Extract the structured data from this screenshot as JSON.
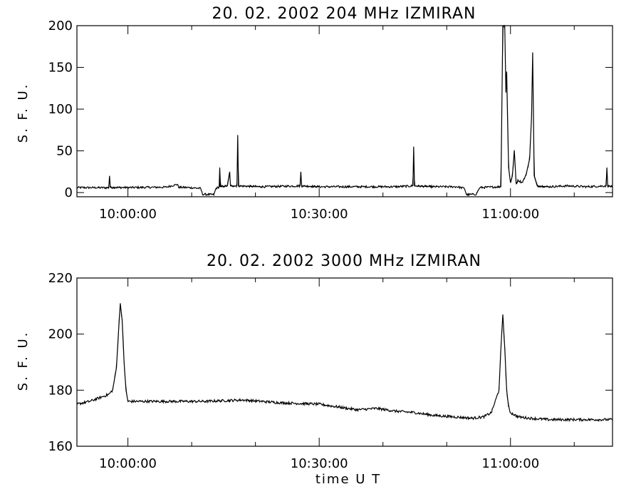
{
  "chart_data": [
    {
      "type": "line",
      "title": "20.  02.  2002    204 MHz    IZMIRAN",
      "ylabel": "S. F. U.",
      "xlabel": "",
      "xlim": [
        9.8667,
        11.2667
      ],
      "ylim": [
        -5,
        200
      ],
      "yticks": [
        0,
        50,
        100,
        150,
        200
      ],
      "xticks": [
        {
          "value": 10.0,
          "label": "10:00:00"
        },
        {
          "value": 10.5,
          "label": "10:30:00"
        },
        {
          "value": 11.0,
          "label": "11:00:00"
        }
      ],
      "series": [
        {
          "baseline": 6,
          "points": [
            [
              9.8667,
              6.0
            ],
            [
              9.95,
              5.8
            ],
            [
              9.952,
              20.0
            ],
            [
              9.954,
              6.2
            ],
            [
              10.0,
              6.0
            ],
            [
              10.1,
              6.5
            ],
            [
              10.13,
              10.0
            ],
            [
              10.132,
              6.3
            ],
            [
              10.16,
              6.0
            ],
            [
              10.19,
              5.0
            ],
            [
              10.195,
              -2.0
            ],
            [
              10.225,
              -2.5
            ],
            [
              10.23,
              5.0
            ],
            [
              10.24,
              7.0
            ],
            [
              10.24,
              30.0
            ],
            [
              10.242,
              7.0
            ],
            [
              10.26,
              8.0
            ],
            [
              10.266,
              25.0
            ],
            [
              10.268,
              8.0
            ],
            [
              10.285,
              8.0
            ],
            [
              10.287,
              69.0
            ],
            [
              10.289,
              8.0
            ],
            [
              10.35,
              7.0
            ],
            [
              10.45,
              8.0
            ],
            [
              10.452,
              25.0
            ],
            [
              10.454,
              8.0
            ],
            [
              10.5,
              7.0
            ],
            [
              10.6,
              7.0
            ],
            [
              10.7,
              7.0
            ],
            [
              10.745,
              8.0
            ],
            [
              10.747,
              55.0
            ],
            [
              10.749,
              8.0
            ],
            [
              10.8,
              7.0
            ],
            [
              10.86,
              7.0
            ],
            [
              10.88,
              5.0
            ],
            [
              10.885,
              -2.5
            ],
            [
              10.91,
              -2.0
            ],
            [
              10.92,
              6.0
            ],
            [
              10.975,
              7.0
            ],
            [
              10.98,
              200.0
            ],
            [
              10.985,
              200.0
            ],
            [
              10.988,
              120.0
            ],
            [
              10.99,
              145.0
            ],
            [
              10.995,
              30.0
            ],
            [
              11.0,
              12.0
            ],
            [
              11.005,
              20.0
            ],
            [
              11.01,
              50.0
            ],
            [
              11.015,
              10.0
            ],
            [
              11.02,
              15.0
            ],
            [
              11.03,
              12.0
            ],
            [
              11.04,
              20.0
            ],
            [
              11.05,
              40.0
            ],
            [
              11.055,
              90.0
            ],
            [
              11.058,
              168.0
            ],
            [
              11.062,
              20.0
            ],
            [
              11.07,
              8.0
            ],
            [
              11.1,
              7.0
            ],
            [
              11.15,
              8.0
            ],
            [
              11.2,
              7.0
            ],
            [
              11.25,
              8.0
            ],
            [
              11.252,
              30.0
            ],
            [
              11.254,
              8.0
            ],
            [
              11.2667,
              7.0
            ]
          ]
        }
      ]
    },
    {
      "type": "line",
      "title": "20.  02.  2002    3000 MHz    IZMIRAN",
      "ylabel": "S. F. U.",
      "xlabel": "time   U T",
      "xlim": [
        9.8667,
        11.2667
      ],
      "ylim": [
        160,
        220
      ],
      "yticks": [
        160,
        180,
        200,
        220
      ],
      "xticks": [
        {
          "value": 10.0,
          "label": "10:00:00"
        },
        {
          "value": 10.5,
          "label": "10:30:00"
        },
        {
          "value": 11.0,
          "label": "11:00:00"
        }
      ],
      "series": [
        {
          "points": [
            [
              9.8667,
              175.0
            ],
            [
              9.9,
              176.0
            ],
            [
              9.93,
              177.5
            ],
            [
              9.95,
              178.5
            ],
            [
              9.96,
              180.0
            ],
            [
              9.97,
              188.0
            ],
            [
              9.975,
              200.0
            ],
            [
              9.98,
              211.0
            ],
            [
              9.985,
              205.0
            ],
            [
              9.99,
              190.0
            ],
            [
              9.995,
              180.0
            ],
            [
              10.0,
              176.0
            ],
            [
              10.03,
              176.0
            ],
            [
              10.1,
              176.0
            ],
            [
              10.2,
              176.0
            ],
            [
              10.3,
              176.5
            ],
            [
              10.4,
              175.5
            ],
            [
              10.5,
              175.0
            ],
            [
              10.55,
              174.0
            ],
            [
              10.6,
              173.0
            ],
            [
              10.65,
              173.5
            ],
            [
              10.7,
              172.5
            ],
            [
              10.75,
              172.0
            ],
            [
              10.8,
              171.0
            ],
            [
              10.85,
              170.5
            ],
            [
              10.9,
              170.0
            ],
            [
              10.93,
              170.5
            ],
            [
              10.95,
              172.0
            ],
            [
              10.96,
              176.0
            ],
            [
              10.965,
              178.0
            ],
            [
              10.97,
              180.0
            ],
            [
              10.975,
              195.0
            ],
            [
              10.98,
              207.0
            ],
            [
              10.985,
              195.0
            ],
            [
              10.99,
              180.0
            ],
            [
              10.995,
              174.0
            ],
            [
              11.0,
              172.0
            ],
            [
              11.02,
              170.5
            ],
            [
              11.05,
              170.0
            ],
            [
              11.1,
              169.5
            ],
            [
              11.15,
              169.5
            ],
            [
              11.2,
              169.5
            ],
            [
              11.2667,
              169.5
            ]
          ]
        }
      ]
    }
  ]
}
